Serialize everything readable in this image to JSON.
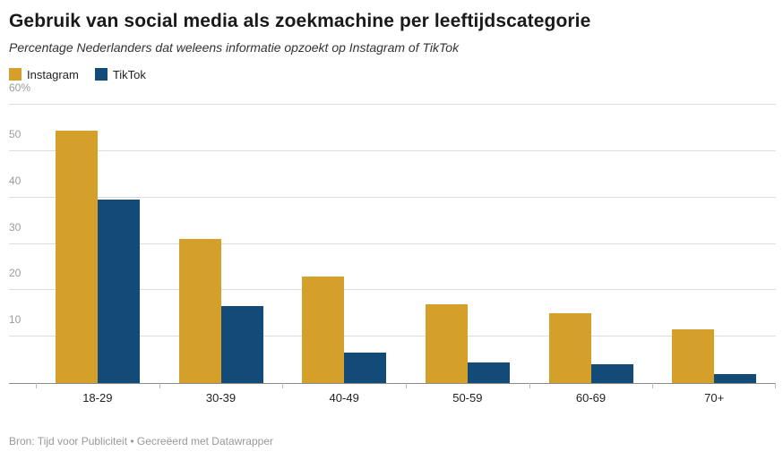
{
  "header": {
    "title": "Gebruik van social media als zoekmachine per leeftijdscategorie",
    "subtitle": "Percentage Nederlanders dat weleens informatie opzoekt op Instagram of TikTok"
  },
  "footer": {
    "text": "Bron: Tijd voor Publiciteit • Gecreëerd met Datawrapper"
  },
  "colors": {
    "instagram": "#d4a029",
    "tiktok": "#134b78",
    "gridline": "#dddddd",
    "axis_text": "#9b9b9b"
  },
  "chart_data": {
    "type": "bar",
    "title": "Gebruik van social media als zoekmachine per leeftijdscategorie",
    "subtitle": "Percentage Nederlanders dat weleens informatie opzoekt op Instagram of TikTok",
    "categories": [
      "18-29",
      "30-39",
      "40-49",
      "50-59",
      "60-69",
      "70+"
    ],
    "series": [
      {
        "name": "Instagram",
        "color": "#d4a029",
        "values": [
          54.5,
          31,
          23,
          17,
          15,
          11.5
        ]
      },
      {
        "name": "TikTok",
        "color": "#134b78",
        "values": [
          39.5,
          16.5,
          6.5,
          4.5,
          4,
          2
        ]
      }
    ],
    "xlabel": "",
    "ylabel": "",
    "ylim": [
      0,
      60
    ],
    "yticks": [
      10,
      20,
      30,
      40,
      50,
      60
    ],
    "ytick_labels": [
      "10",
      "20",
      "30",
      "40",
      "50",
      "60%"
    ],
    "grid": true,
    "legend_position": "top-left"
  }
}
